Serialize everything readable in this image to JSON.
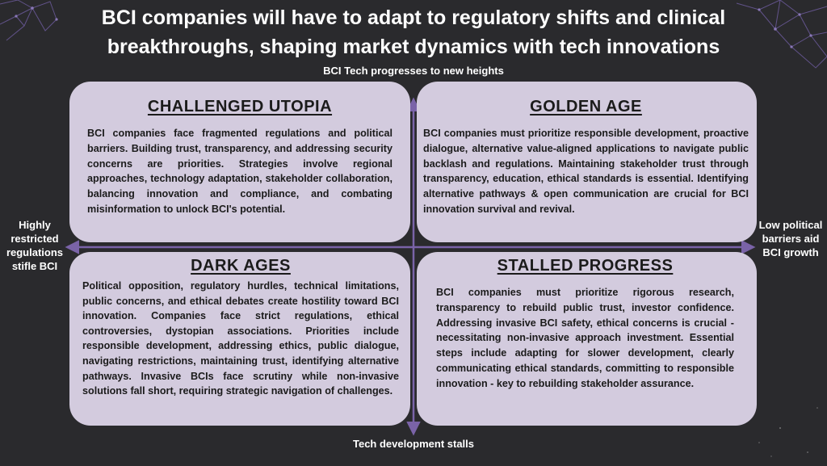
{
  "title": "BCI companies  will have to adapt to regulatory shifts and clinical\nbreakthroughs, shaping market dynamics with tech innovations",
  "axes": {
    "top": "BCI Tech progresses to new heights",
    "bottom": "Tech development stalls",
    "left": "Highly restricted regulations stifle BCI",
    "right": "Low political barriers aid BCI growth"
  },
  "quadrants": {
    "top_left": {
      "heading": "CHALLENGED UTOPIA",
      "body": "BCI companies face fragmented regulations and political barriers. Building trust, transparency, and addressing security concerns are priorities. Strategies involve regional approaches, technology adaptation, stakeholder collaboration, balancing innovation and compliance, and combating misinformation to unlock BCI's potential."
    },
    "top_right": {
      "heading": "GOLDEN AGE",
      "body": "BCI companies must prioritize responsible development, proactive dialogue, alternative value-aligned applications to navigate public backlash and regulations. Maintaining stakeholder trust through transparency, education, ethical standards is essential. Identifying alternative pathways & open communication are crucial for BCI innovation survival and revival."
    },
    "bottom_left": {
      "heading": "DARK AGES",
      "body": "Political opposition, regulatory hurdles, technical limitations, public concerns, and ethical debates create hostility toward BCI innovation. Companies face strict regulations, ethical controversies, dystopian associations. Priorities include responsible development, addressing ethics, public dialogue, navigating restrictions, maintaining trust, identifying alternative pathways. Invasive BCIs face scrutiny while non-invasive solutions fall short, requiring strategic navigation of challenges."
    },
    "bottom_right": {
      "heading": "STALLED PROGRESS",
      "body": "BCI companies must prioritize rigorous research, transparency to rebuild public trust, investor confidence. Addressing invasive BCI safety, ethical concerns is crucial - necessitating non-invasive approach investment. Essential steps include adapting for slower development, clearly communicating ethical standards, committing to responsible innovation - key to rebuilding stakeholder assurance."
    }
  },
  "colors": {
    "background": "#2a2a2d",
    "quadrant_fill": "#d3cbde",
    "axis_color": "#7a63a8",
    "decor_lines": "#6b5a9a"
  }
}
